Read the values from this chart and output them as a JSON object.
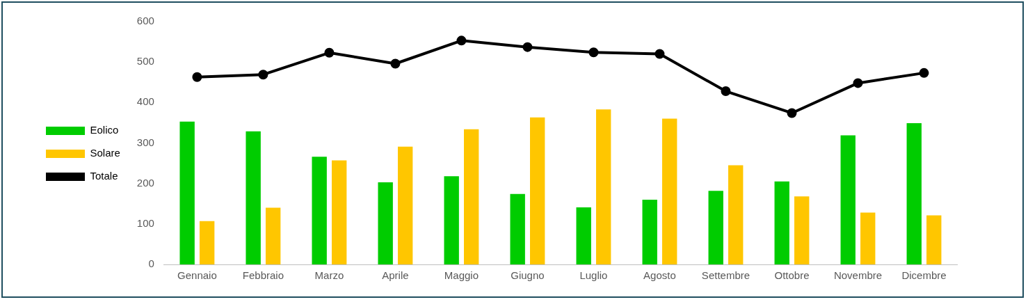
{
  "chart_data": {
    "type": "bar",
    "categories": [
      "Gennaio",
      "Febbraio",
      "Marzo",
      "Aprile",
      "Maggio",
      "Giugno",
      "Luglio",
      "Agosto",
      "Settembre",
      "Ottobre",
      "Novembre",
      "Dicembre"
    ],
    "series": [
      {
        "name": "Eolico",
        "color": "#00cc00",
        "values": [
          353,
          329,
          266,
          203,
          218,
          174,
          141,
          160,
          182,
          205,
          319,
          349
        ]
      },
      {
        "name": "Solare",
        "color": "#ffc600",
        "values": [
          107,
          140,
          257,
          291,
          334,
          363,
          383,
          360,
          245,
          168,
          128,
          121
        ]
      },
      {
        "name": "Totale",
        "type": "line",
        "color": "#000000",
        "marker": "circle",
        "values": [
          463,
          469,
          523,
          496,
          553,
          537,
          524,
          520,
          428,
          374,
          448,
          473
        ]
      }
    ],
    "ylim": [
      0,
      600
    ],
    "yticks": [
      0,
      100,
      200,
      300,
      400,
      500,
      600
    ],
    "grid": false,
    "legend": "left"
  }
}
